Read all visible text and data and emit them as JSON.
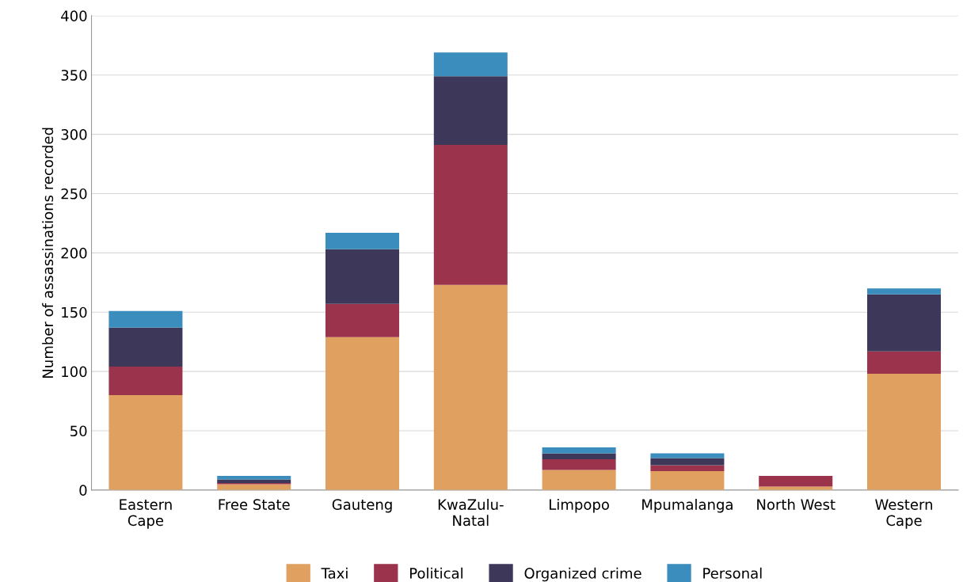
{
  "chart_data": {
    "type": "bar",
    "stacked": true,
    "ylabel": "Number of assassinations recorded",
    "categories": [
      "Eastern\nCape",
      "Free State",
      "Gauteng",
      "KwaZulu-\nNatal",
      "Limpopo",
      "Mpumalanga",
      "North West",
      "Western\nCape"
    ],
    "series": [
      {
        "name": "Taxi",
        "color": "#e0a060",
        "values": [
          80,
          5,
          129,
          173,
          17,
          16,
          3,
          98
        ]
      },
      {
        "name": "Political",
        "color": "#9a334b",
        "values": [
          24,
          1,
          28,
          118,
          9,
          5,
          9,
          19
        ]
      },
      {
        "name": "Organized crime",
        "color": "#3d3859",
        "values": [
          33,
          3,
          46,
          58,
          5,
          6,
          0,
          48
        ]
      },
      {
        "name": "Personal",
        "color": "#3a8dbc",
        "values": [
          14,
          3,
          14,
          20,
          5,
          4,
          0,
          5
        ]
      }
    ],
    "ylim": [
      0,
      400
    ],
    "yticks": [
      0,
      50,
      100,
      150,
      200,
      250,
      300,
      350,
      400
    ],
    "grid": "y",
    "legend": "bottom"
  }
}
